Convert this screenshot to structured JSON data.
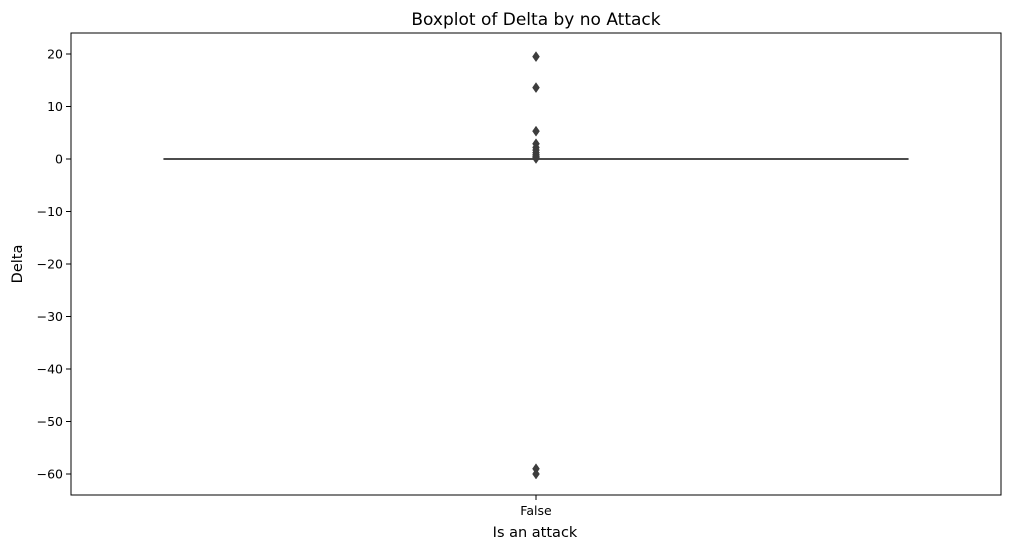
{
  "chart_data": {
    "type": "boxplot",
    "title": "Boxplot of Delta by no Attack",
    "xlabel": "Is an attack",
    "ylabel": "Delta",
    "categories": [
      "False"
    ],
    "ylim": [
      -64,
      24
    ],
    "yticks": [
      20,
      10,
      0,
      -10,
      -20,
      -30,
      -40,
      -50,
      -60
    ],
    "ytick_labels": [
      "20",
      "10",
      "0",
      "−10",
      "−20",
      "−30",
      "−40",
      "−50",
      "−60"
    ],
    "grid": false,
    "boxes": [
      {
        "category": "False",
        "q1": 0,
        "median": 0,
        "q3": 0,
        "whisker_low": 0,
        "whisker_high": 0,
        "outliers": [
          19.5,
          13.6,
          5.3,
          2.9,
          2.2,
          1.7,
          1.2,
          0.8,
          0.5,
          0.3,
          0.1,
          -59,
          -60
        ]
      }
    ],
    "colors": {
      "box": "#4c4c4c",
      "outlier": "#3d3d3d",
      "axis": "#000000"
    }
  }
}
